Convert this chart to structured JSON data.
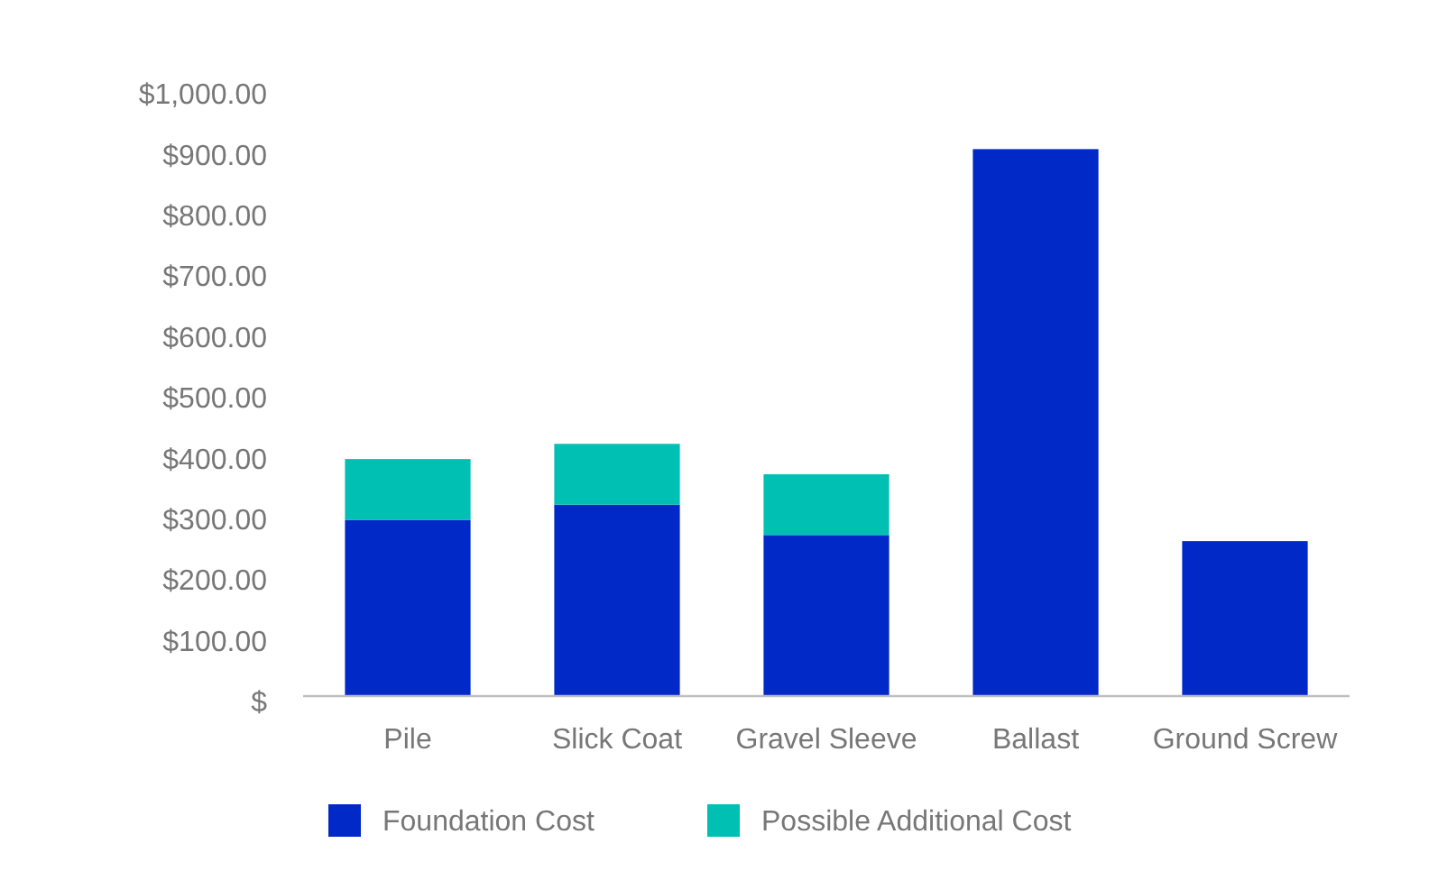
{
  "chart_data": {
    "type": "bar",
    "stacked": true,
    "categories": [
      "Pile",
      "Slick Coat",
      "Gravel Sleeve",
      "Ballast",
      "Ground Screw"
    ],
    "series": [
      {
        "name": "Foundation Cost",
        "color": "#0029c8",
        "values": [
          290,
          315,
          265,
          900,
          255
        ]
      },
      {
        "name": "Possible Additional Cost",
        "color": "#00bfb3",
        "values": [
          100,
          100,
          100,
          null,
          null
        ]
      }
    ],
    "ylim": [
      0,
      1000
    ],
    "yticks": [
      {
        "value": 0,
        "label": "$"
      },
      {
        "value": 100,
        "label": "$100.00"
      },
      {
        "value": 200,
        "label": "$200.00"
      },
      {
        "value": 300,
        "label": "$300.00"
      },
      {
        "value": 400,
        "label": "$400.00"
      },
      {
        "value": 500,
        "label": "$500.00"
      },
      {
        "value": 600,
        "label": "$600.00"
      },
      {
        "value": 700,
        "label": "$700.00"
      },
      {
        "value": 800,
        "label": "$800.00"
      },
      {
        "value": 900,
        "label": "$900.00"
      },
      {
        "value": 1000,
        "label": "$1,000.00"
      }
    ],
    "grid": false,
    "legend": "bottom"
  }
}
